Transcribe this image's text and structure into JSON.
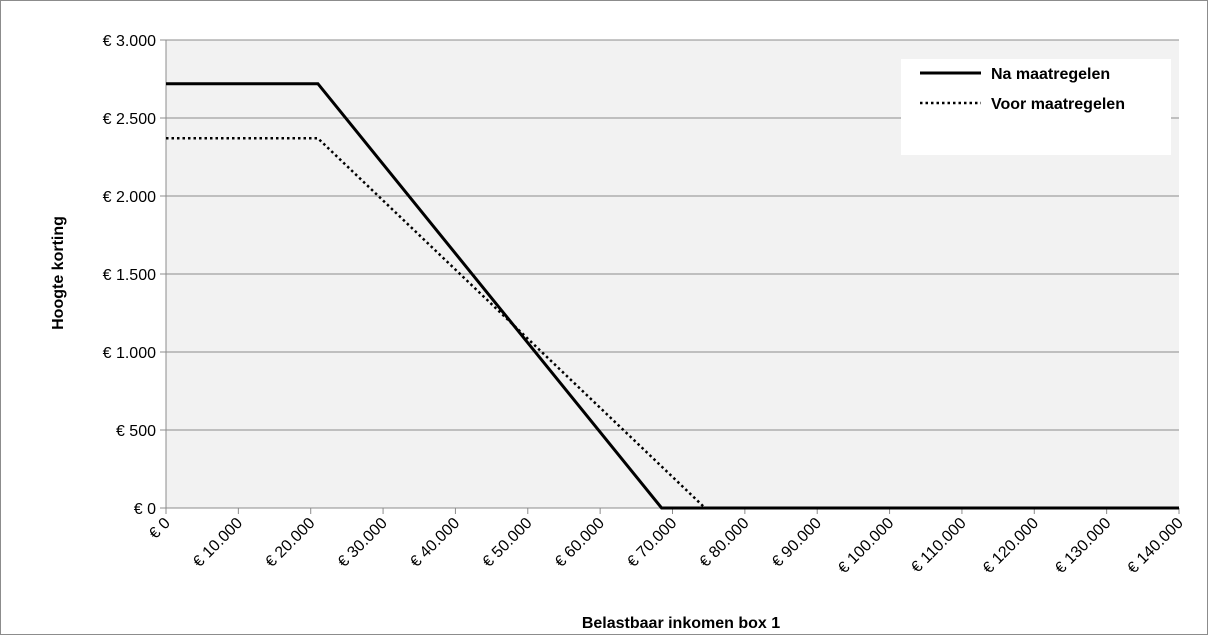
{
  "chart_data": {
    "type": "line",
    "xlabel": "Belastbaar inkomen box 1",
    "ylabel": "Hoogte korting",
    "xlim": [
      0,
      140000
    ],
    "ylim": [
      0,
      3000
    ],
    "x_ticks": [
      0,
      10000,
      20000,
      30000,
      40000,
      50000,
      60000,
      70000,
      80000,
      90000,
      100000,
      110000,
      120000,
      130000,
      140000
    ],
    "x_tick_labels": [
      "€ 0",
      "€ 10.000",
      "€ 20.000",
      "€ 30.000",
      "€ 40.000",
      "€ 50.000",
      "€ 60.000",
      "€ 70.000",
      "€ 80.000",
      "€ 90.000",
      "€ 100.000",
      "€ 110.000",
      "€ 120.000",
      "€ 130.000",
      "€ 140.000"
    ],
    "y_ticks": [
      0,
      500,
      1000,
      1500,
      2000,
      2500,
      3000
    ],
    "y_tick_labels": [
      "€ 0",
      "€ 500",
      "€ 1.000",
      "€ 1.500",
      "€ 2.000",
      "€ 2.500",
      "€ 3.000"
    ],
    "grid": "horizontal",
    "legend_position": "top-right",
    "plot_background": "#f2f2f2",
    "series": [
      {
        "name": "Na maatregelen",
        "style": "solid",
        "color": "#000000",
        "x": [
          0,
          21000,
          68500,
          140000
        ],
        "y": [
          2720,
          2720,
          0,
          0
        ]
      },
      {
        "name": "Voor maatregelen",
        "style": "dotted",
        "color": "#000000",
        "x": [
          0,
          21000,
          74500,
          140000
        ],
        "y": [
          2370,
          2370,
          0,
          0
        ]
      }
    ]
  }
}
